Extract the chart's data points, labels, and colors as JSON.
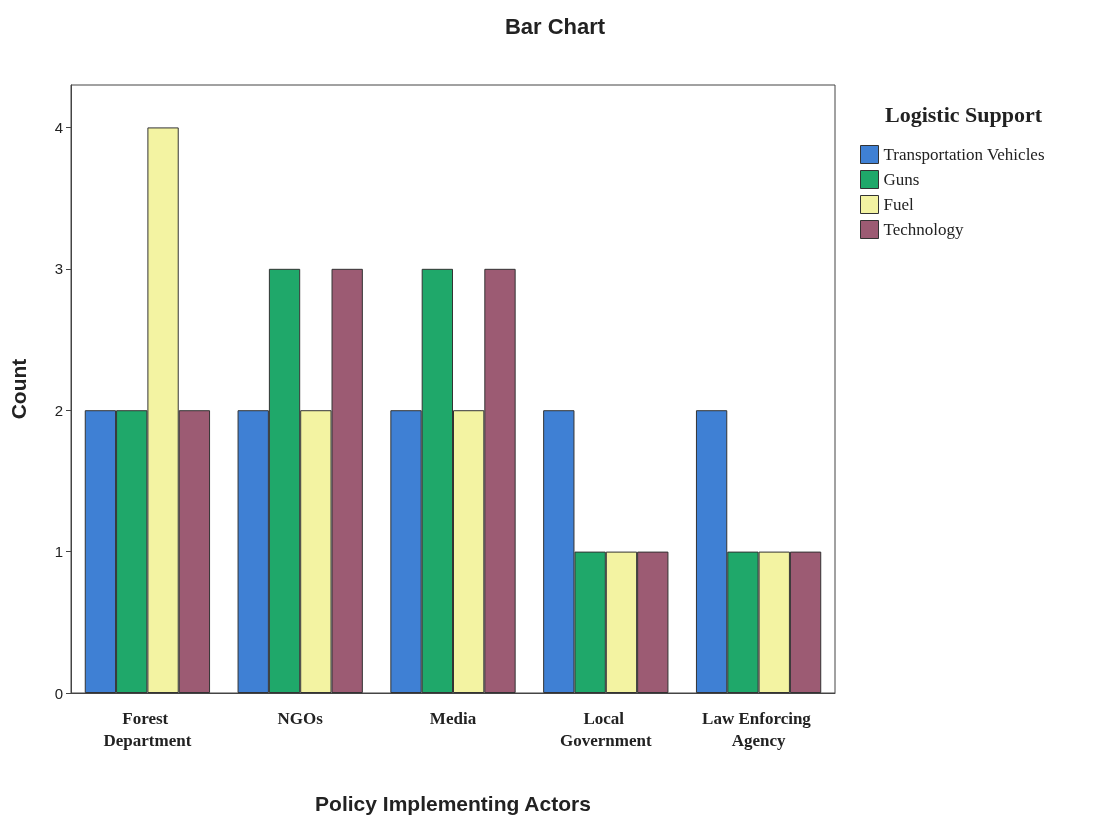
{
  "chart_data": {
    "type": "bar",
    "title": "Bar Chart",
    "xlabel": "Policy Implementing Actors",
    "ylabel": "Count",
    "legend_title": "Logistic Support",
    "categories": [
      "Forest Department",
      "NGOs",
      "Media",
      "Local Government",
      "Law Enforcing Agency"
    ],
    "series": [
      {
        "name": "Transportation Vehicles",
        "color": "#3f80d4",
        "values": [
          2,
          2,
          2,
          2,
          2
        ]
      },
      {
        "name": "Guns",
        "color": "#1fa86a",
        "values": [
          2,
          3,
          3,
          1,
          1
        ]
      },
      {
        "name": "Fuel",
        "color": "#f3f3a2",
        "values": [
          4,
          2,
          2,
          1,
          1
        ]
      },
      {
        "name": "Technology",
        "color": "#9c5b73",
        "values": [
          2,
          3,
          3,
          1,
          1
        ]
      }
    ],
    "ylim": [
      0,
      4.3
    ],
    "yticks": [
      0,
      1,
      2,
      3,
      4
    ],
    "grid": false,
    "legend": "top right"
  }
}
